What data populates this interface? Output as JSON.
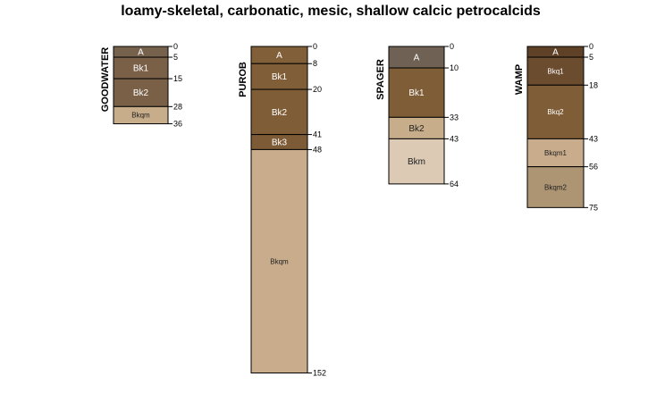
{
  "title": "loamy-skeletal, carbonatic, mesic, shallow calcic petrocalcids",
  "chart_data": {
    "type": "soil-profile-sketch",
    "depth_axis": {
      "min": 0,
      "max": 152,
      "direction": "down"
    },
    "profiles": [
      {
        "name": "GOODWATER",
        "horizons": [
          {
            "name": "A",
            "top": 0,
            "bottom": 5,
            "color": "#76624c"
          },
          {
            "name": "Bk1",
            "top": 5,
            "bottom": 15,
            "color": "#796047"
          },
          {
            "name": "Bk2",
            "top": 15,
            "bottom": 28,
            "color": "#796047"
          },
          {
            "name": "Bkqm",
            "top": 28,
            "bottom": 36,
            "color": "#c8ad8b"
          }
        ]
      },
      {
        "name": "PUROB",
        "horizons": [
          {
            "name": "A",
            "top": 0,
            "bottom": 8,
            "color": "#815f38"
          },
          {
            "name": "Bk1",
            "top": 8,
            "bottom": 20,
            "color": "#805f38"
          },
          {
            "name": "Bk2",
            "top": 20,
            "bottom": 41,
            "color": "#7f5d37"
          },
          {
            "name": "Bk3",
            "top": 41,
            "bottom": 48,
            "color": "#7c5b36"
          },
          {
            "name": "Bkqm",
            "top": 48,
            "bottom": 152,
            "color": "#c8ac8c"
          }
        ]
      },
      {
        "name": "SPAGER",
        "horizons": [
          {
            "name": "A",
            "top": 0,
            "bottom": 10,
            "color": "#6f6254"
          },
          {
            "name": "Bk1",
            "top": 10,
            "bottom": 33,
            "color": "#7f5d37"
          },
          {
            "name": "Bk2",
            "top": 33,
            "bottom": 43,
            "color": "#c8ad8b"
          },
          {
            "name": "Bkm",
            "top": 43,
            "bottom": 64,
            "color": "#dccab4"
          }
        ]
      },
      {
        "name": "WAMP",
        "horizons": [
          {
            "name": "A",
            "top": 0,
            "bottom": 5,
            "color": "#5e4127"
          },
          {
            "name": "Bkq1",
            "top": 5,
            "bottom": 18,
            "color": "#6b4c2f"
          },
          {
            "name": "Bkq2",
            "top": 18,
            "bottom": 43,
            "color": "#7f5d37"
          },
          {
            "name": "Bkqm1",
            "top": 43,
            "bottom": 56,
            "color": "#c8ac8b"
          },
          {
            "name": "Bkqm2",
            "top": 56,
            "bottom": 75,
            "color": "#ad9473"
          }
        ]
      }
    ]
  }
}
